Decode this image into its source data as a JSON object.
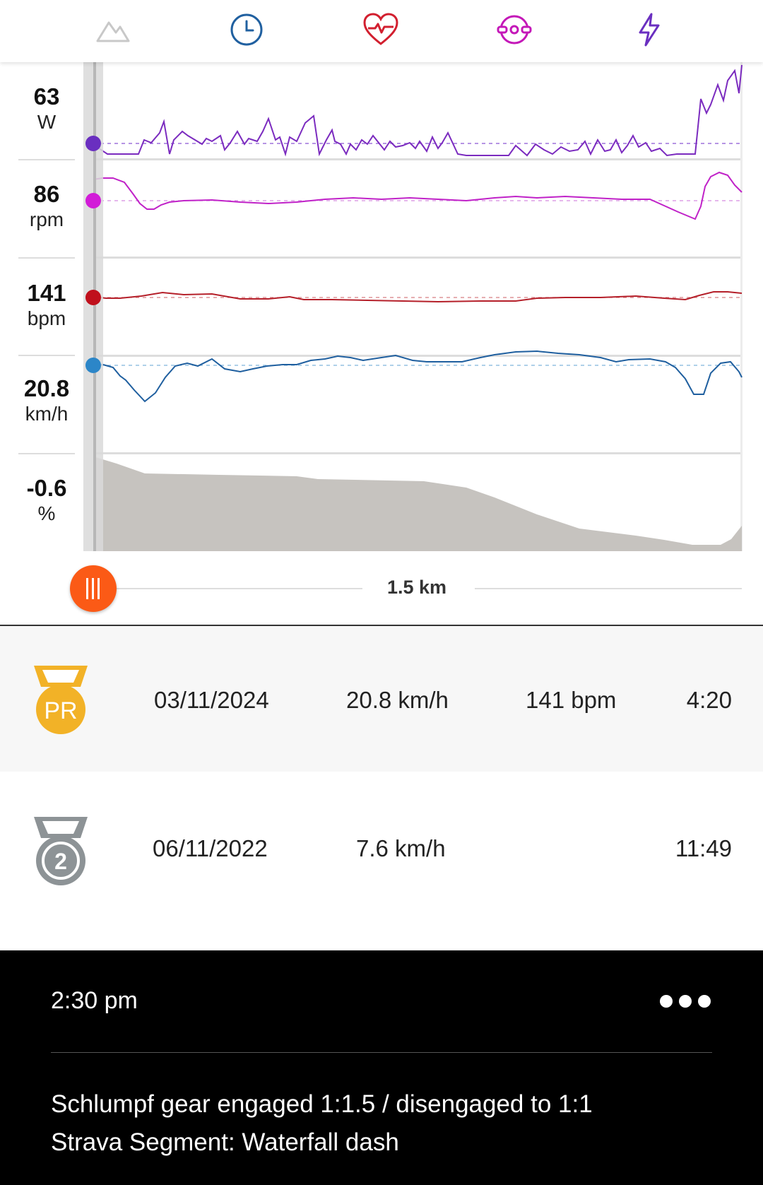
{
  "tabs": [
    {
      "icon": "mountain-icon",
      "color": "#c8c8c8"
    },
    {
      "icon": "clock-icon",
      "color": "#2060a0"
    },
    {
      "icon": "heart-rate-icon",
      "color": "#d21f2f"
    },
    {
      "icon": "cadence-icon",
      "color": "#c418b8"
    },
    {
      "icon": "power-bolt-icon",
      "color": "#6a2fc0"
    }
  ],
  "metrics": [
    {
      "value": "63",
      "unit": "W",
      "color": "#6a2fc0"
    },
    {
      "value": "86",
      "unit": "rpm",
      "color": "#d21cd8"
    },
    {
      "value": "141",
      "unit": "bpm",
      "color": "#c0101c"
    },
    {
      "value": "20.8",
      "unit": "km/h",
      "color": "#2c86c8"
    },
    {
      "value": "-0.6",
      "unit": "%",
      "color": "#bdbab6"
    }
  ],
  "scrubber": {
    "distance": "1.5 km",
    "handle_color": "#fb5a16",
    "position": 0.0
  },
  "efforts": [
    {
      "medal": "PR",
      "medal_icon": "pr-medal-icon",
      "date": "03/11/2024",
      "speed": "20.8 km/h",
      "heart_rate": "141 bpm",
      "time": "4:20"
    },
    {
      "medal": "2",
      "medal_icon": "second-place-medal-icon",
      "date": "06/11/2022",
      "speed": "7.6 km/h",
      "heart_rate": "",
      "time": "11:49"
    }
  ],
  "footer": {
    "time": "2:30 pm",
    "more_icon": "more-dots-icon",
    "notes": [
      "Schlumpf gear engaged 1:1.5 / disengaged to 1:1",
      "Strava Segment: Waterfall dash"
    ]
  }
}
